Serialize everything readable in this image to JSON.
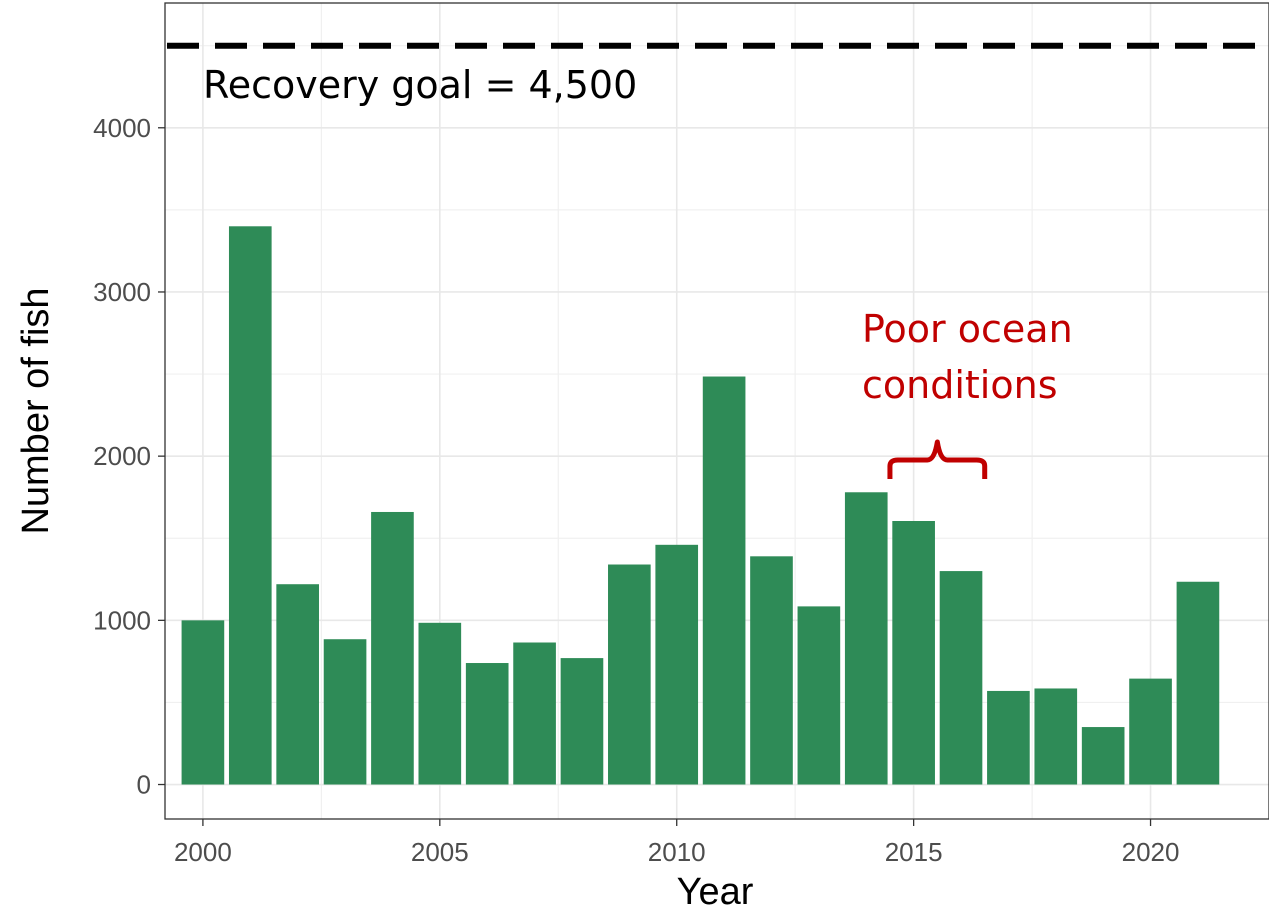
{
  "chart_data": {
    "type": "bar",
    "x": [
      2000,
      2001,
      2002,
      2003,
      2004,
      2005,
      2006,
      2007,
      2008,
      2009,
      2010,
      2011,
      2012,
      2013,
      2014,
      2015,
      2016,
      2017,
      2018,
      2019,
      2020,
      2021
    ],
    "values": [
      1000,
      3400,
      1220,
      885,
      1660,
      985,
      740,
      865,
      770,
      1340,
      1460,
      2485,
      1390,
      1085,
      1780,
      1605,
      1300,
      570,
      585,
      350,
      645,
      1235
    ],
    "xlabel": "Year",
    "ylabel": "Number of fish",
    "xlim": [
      1999.2,
      2022.5
    ],
    "ylim": [
      -210,
      4760
    ],
    "x_ticks": [
      2000,
      2005,
      2010,
      2015,
      2020
    ],
    "y_ticks": [
      0,
      1000,
      2000,
      3000,
      4000
    ],
    "grid": true,
    "bar_color": "#2e8b57",
    "reference_line": {
      "value": 4500,
      "label": "Recovery goal = 4,500",
      "style": "dashed",
      "color": "#000000"
    },
    "annotation": {
      "lines": [
        "Poor ocean",
        "conditions"
      ],
      "x_range": [
        2014.5,
        2016.5
      ],
      "color": "#c00000"
    }
  }
}
